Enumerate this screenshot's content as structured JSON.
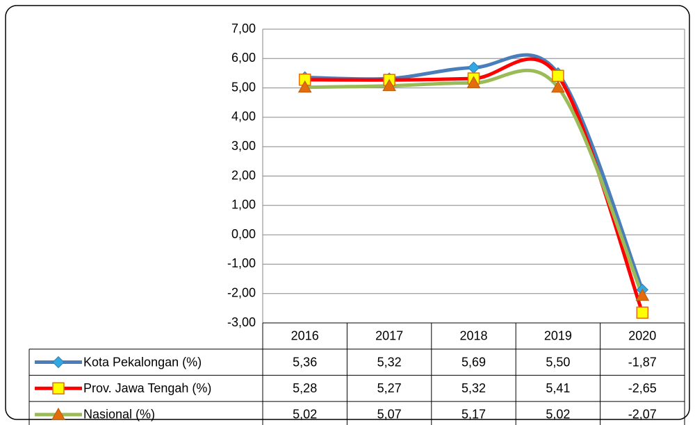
{
  "chart_data": {
    "type": "line",
    "categories": [
      "2016",
      "2017",
      "2018",
      "2019",
      "2020"
    ],
    "series": [
      {
        "name": "Kota Pekalongan (%)",
        "color": "#4a7ebb",
        "marker": "diamond",
        "marker_color": "#33a8e0",
        "values": [
          5.36,
          5.32,
          5.69,
          5.5,
          -1.87
        ],
        "value_labels": [
          "5,36",
          "5,32",
          "5,69",
          "5,50",
          "-1,87"
        ]
      },
      {
        "name": "Prov. Jawa Tengah (%)",
        "color": "#ff0000",
        "marker": "square",
        "marker_color": "#ffff00",
        "values": [
          5.28,
          5.27,
          5.32,
          5.41,
          -2.65
        ],
        "value_labels": [
          "5,28",
          "5,27",
          "5,32",
          "5,41",
          "-2,65"
        ]
      },
      {
        "name": "Nasional (%)",
        "color": "#9bbb59",
        "marker": "triangle",
        "marker_color": "#e46c0a",
        "values": [
          5.02,
          5.07,
          5.17,
          5.02,
          -2.07
        ],
        "value_labels": [
          "5,02",
          "5,07",
          "5,17",
          "5,02",
          "-2,07"
        ]
      }
    ],
    "ylim": [
      -3,
      7
    ],
    "yticks": [
      {
        "value": -3,
        "label": "-3,00"
      },
      {
        "value": -2,
        "label": "-2,00"
      },
      {
        "value": -1,
        "label": "-1,00"
      },
      {
        "value": 0,
        "label": "0,00"
      },
      {
        "value": 1,
        "label": "1,00"
      },
      {
        "value": 2,
        "label": "2,00"
      },
      {
        "value": 3,
        "label": "3,00"
      },
      {
        "value": 4,
        "label": "4,00"
      },
      {
        "value": 5,
        "label": "5,00"
      },
      {
        "value": 6,
        "label": "6,00"
      },
      {
        "value": 7,
        "label": "7,00"
      }
    ],
    "grid": true,
    "smooth": true,
    "data_table": true
  }
}
